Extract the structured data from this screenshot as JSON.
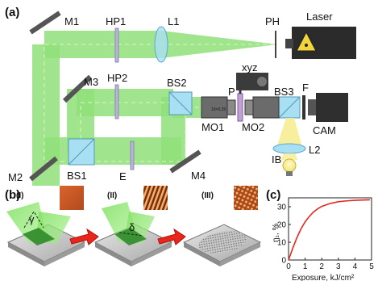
{
  "panels": {
    "a": "(a)",
    "b": "(b)",
    "c": "(c)"
  },
  "setup": {
    "laser": "Laser",
    "ph": "PH",
    "l1": "L1",
    "hp1": "HP1",
    "m1": "M1",
    "m3": "M3",
    "hp2": "HP2",
    "bs2": "BS2",
    "p": "P",
    "xyz": "xyz",
    "bs3": "BS3",
    "f": "F",
    "mo1": "MO1",
    "mo2": "MO2",
    "cam": "CAM",
    "l2": "L2",
    "ib": "IB",
    "m2": "M2",
    "bs1": "BS1",
    "e": "E",
    "m4": "M4"
  },
  "steps": {
    "s1": "(I)",
    "s2": "(II)",
    "s3": "(III)",
    "gamma": "γ",
    "delta": "δ"
  },
  "colors": {
    "beam": "#8fe07a",
    "beam_dash": "#b5ee9d",
    "curve": "#e02a1f",
    "arrow": "#e8261c",
    "laser_box": "#2b2b2b",
    "splitter": "#a9dff2",
    "plate": "#b9b4d8"
  },
  "chart_data": {
    "type": "line",
    "xlabel": "Exposure, kJ/cm²",
    "ylabel": "η₁, %",
    "xlim": [
      0,
      5
    ],
    "ylim": [
      0,
      35
    ],
    "xticks": [
      "0",
      "1",
      "2",
      "3",
      "4",
      "5"
    ],
    "yticks": [
      "0",
      "10",
      "20",
      "30"
    ],
    "series": [
      {
        "x": [
          0,
          0.25,
          0.5,
          0.75,
          1.0,
          1.25,
          1.5,
          1.75,
          2.0,
          2.5,
          3.0,
          3.5,
          4.0,
          4.5,
          4.9
        ],
        "y": [
          0,
          6.5,
          12.5,
          17.5,
          21.5,
          24.5,
          27.0,
          28.8,
          30.2,
          31.8,
          32.8,
          33.3,
          33.6,
          33.8,
          33.9
        ]
      }
    ]
  }
}
